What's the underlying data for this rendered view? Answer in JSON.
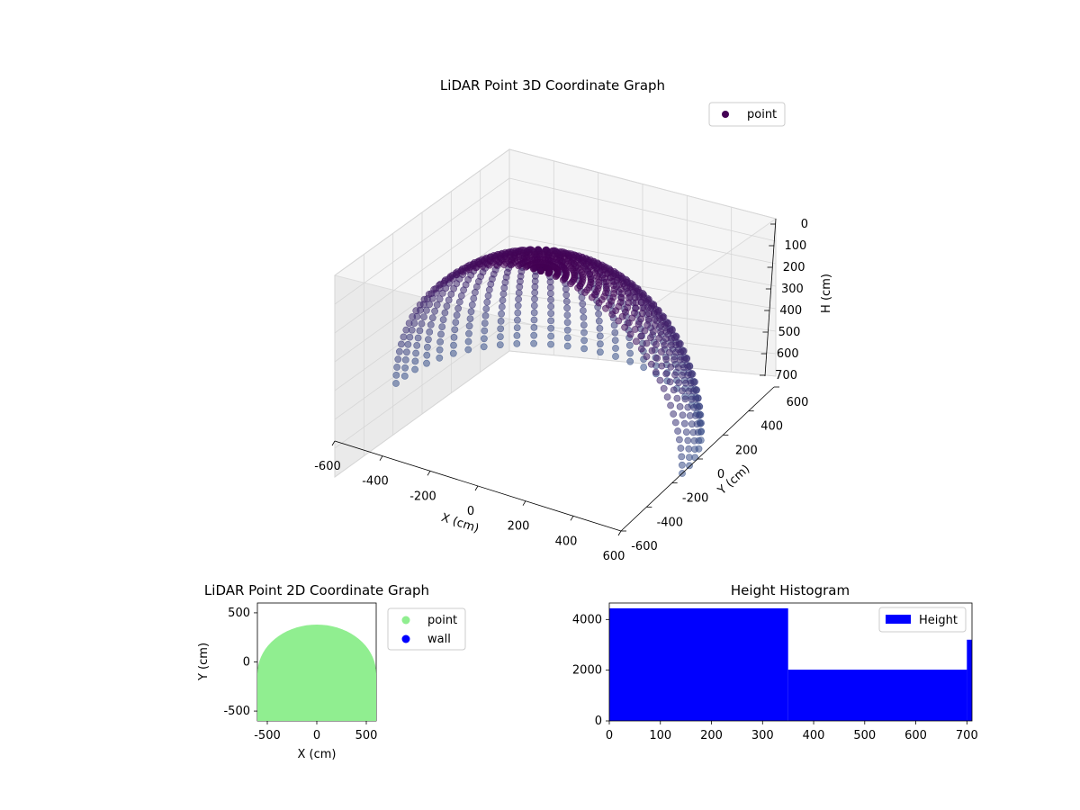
{
  "chart_data": [
    {
      "type": "scatter3d",
      "title": "LiDAR Point 3D Coordinate Graph",
      "xlabel": "X (cm)",
      "ylabel": "Y (cm)",
      "zlabel": "H (cm)",
      "xlim": [
        -600,
        600
      ],
      "ylim": [
        -600,
        600
      ],
      "zlim": [
        0,
        700
      ],
      "z_inverted": true,
      "xticks": [
        "-600",
        "-400",
        "-200",
        "0",
        "200",
        "400",
        "600"
      ],
      "yticks": [
        "-600",
        "-400",
        "-200",
        "0",
        "200",
        "400",
        "600"
      ],
      "zticks": [
        "0",
        "100",
        "200",
        "300",
        "400",
        "500",
        "600",
        "700"
      ],
      "legend": {
        "position": "top-right",
        "entries": [
          {
            "name": "point",
            "color": "#440154"
          }
        ]
      },
      "grid": true,
      "colormap": "viridis",
      "description_values": {
        "dome_radius_cm": 600,
        "max_height_cm": 700,
        "azimuth_range_deg": [
          0,
          180
        ],
        "elevation_range_deg": [
          0,
          90
        ],
        "azimuth_step_deg": 6,
        "elevation_step_deg": 3
      }
    },
    {
      "type": "scatter",
      "title": "LiDAR Point 2D Coordinate Graph",
      "xlabel": "X (cm)",
      "ylabel": "Y (cm)",
      "xlim": [
        -600,
        600
      ],
      "ylim": [
        -600,
        600
      ],
      "xticks": [
        "-500",
        "0",
        "500"
      ],
      "yticks": [
        "-500",
        "0",
        "500"
      ],
      "series": [
        {
          "name": "point",
          "color": "#90ee90",
          "shape": "half-disc",
          "x_range": [
            -600,
            600
          ],
          "y_range": [
            -600,
            380
          ]
        },
        {
          "name": "wall",
          "color": "#0000ff",
          "points": []
        }
      ],
      "legend": {
        "position": "outside-right",
        "entries": [
          {
            "name": "point",
            "color": "#90ee90"
          },
          {
            "name": "wall",
            "color": "#0000ff"
          }
        ]
      }
    },
    {
      "type": "bar",
      "title": "Height Histogram",
      "xlabel": "",
      "ylabel": "",
      "xlim": [
        0,
        710
      ],
      "ylim": [
        0,
        4650
      ],
      "xticks": [
        "0",
        "100",
        "200",
        "300",
        "400",
        "500",
        "600",
        "700"
      ],
      "yticks": [
        "0",
        "2000",
        "4000"
      ],
      "bins": [
        {
          "start": 0,
          "end": 350,
          "value": 4440
        },
        {
          "start": 350,
          "end": 700,
          "value": 2020
        },
        {
          "start": 700,
          "end": 710,
          "value": 3200
        }
      ],
      "legend": {
        "position": "top-right",
        "entries": [
          {
            "name": "Height",
            "color": "#0000ff"
          }
        ]
      }
    }
  ]
}
